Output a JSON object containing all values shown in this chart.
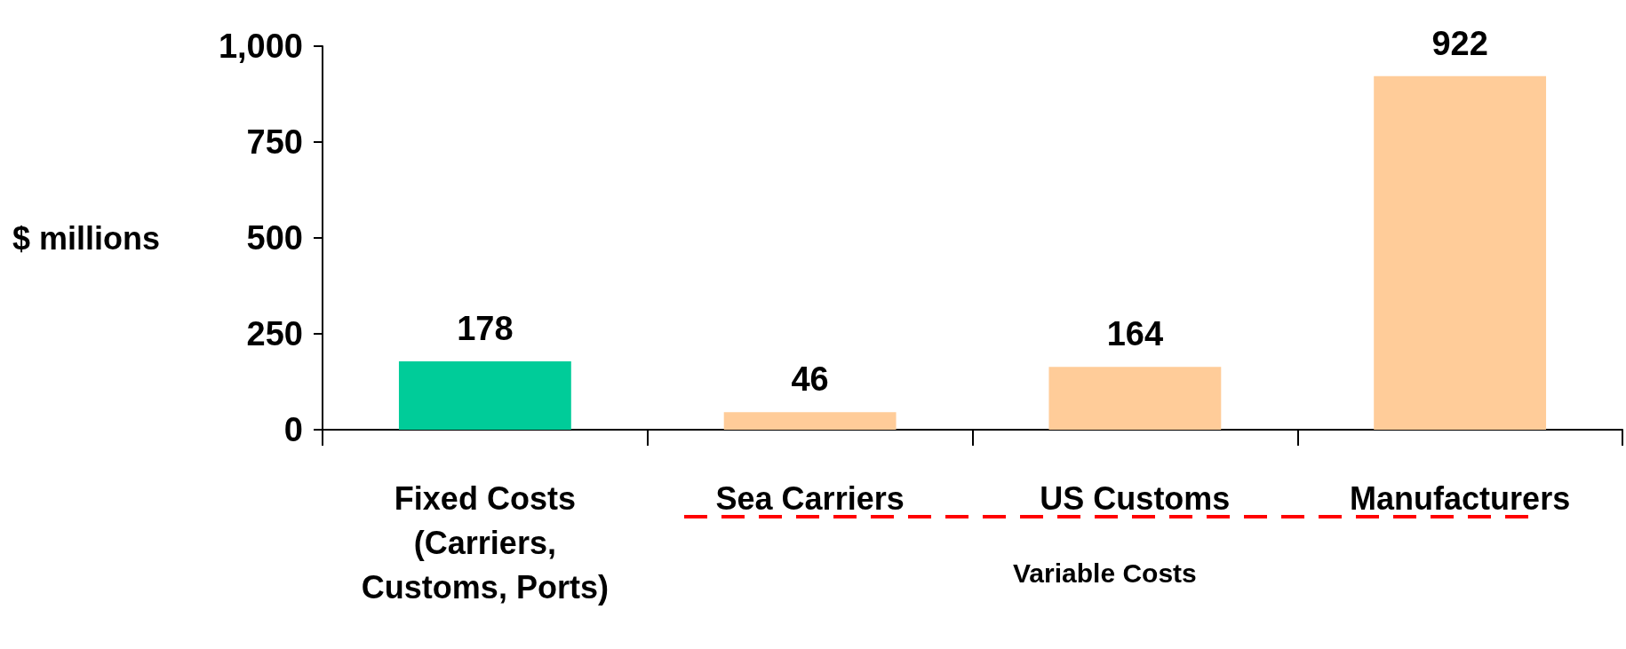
{
  "chart_data": {
    "type": "bar",
    "ylabel": "$ millions",
    "categories": [
      "Fixed Costs\n(Carriers,\nCustoms, Ports)",
      "Sea Carriers",
      "US Customs",
      "Manufacturers"
    ],
    "values": [
      178,
      46,
      164,
      922
    ],
    "colors": [
      "#00cc99",
      "#ffcc99",
      "#ffcc99",
      "#ffcc99"
    ],
    "ylim": [
      0,
      1000
    ],
    "yticks": [
      0,
      250,
      500,
      750,
      {
        "value": 1000,
        "label": "1,000"
      }
    ],
    "grid": false,
    "data_labels": true,
    "annotations": [
      "Variable Costs"
    ]
  }
}
